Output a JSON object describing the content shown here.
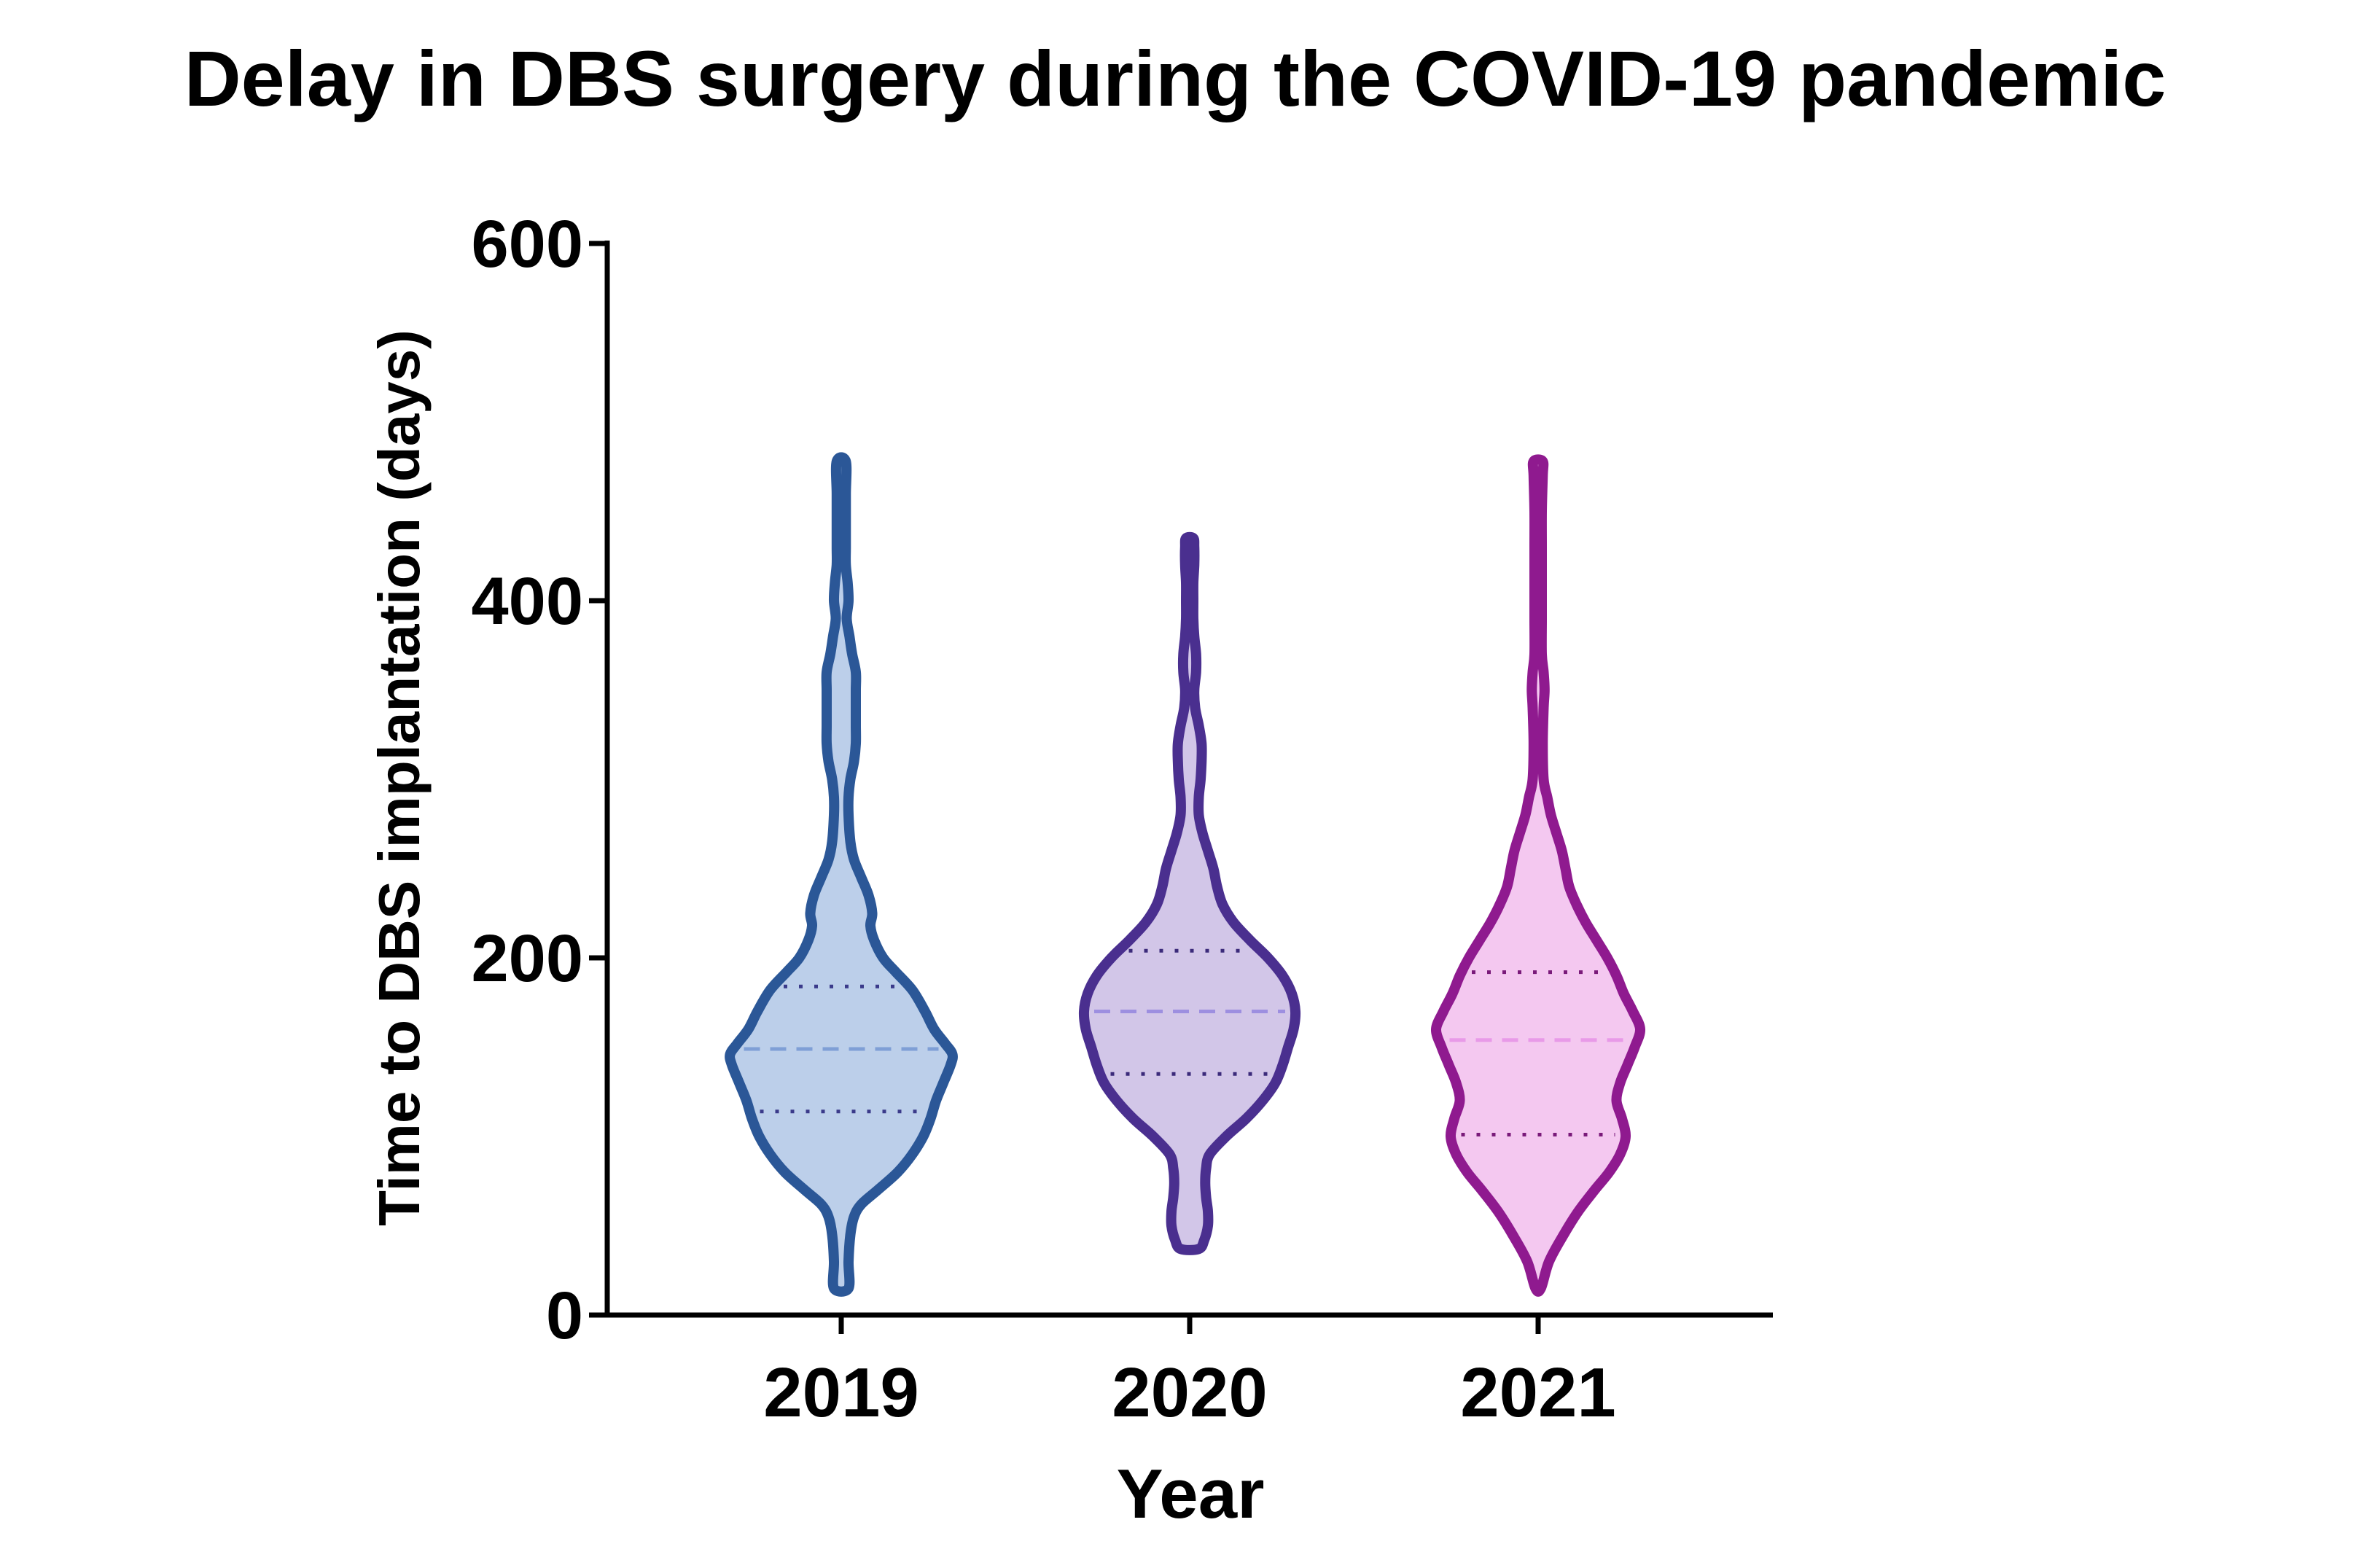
{
  "chart_data": {
    "type": "violin",
    "title": "Delay in DBS surgery during the COVID-19 pandemic",
    "xlabel": "Year",
    "ylabel": "Time to DBS implantation (days)",
    "ylim": [
      0,
      600
    ],
    "yticks": [
      0,
      200,
      400,
      600
    ],
    "ytick_labels": [
      "0",
      "200",
      "400",
      "600"
    ],
    "categories": [
      "2019",
      "2020",
      "2021"
    ],
    "grid": false,
    "legend": "none",
    "violins": [
      {
        "category": "2019",
        "min": 15,
        "max": 478,
        "median": 149,
        "q1": 114,
        "q3": 184,
        "edge_color": "#2b5797",
        "fill_color": "#bccfea",
        "median_color": "#7f9fd6",
        "quartile_color": "#3a3a8a",
        "profile": [
          [
            15,
            0.08
          ],
          [
            30,
            0.08
          ],
          [
            45,
            0.1
          ],
          [
            55,
            0.14
          ],
          [
            62,
            0.22
          ],
          [
            70,
            0.4
          ],
          [
            80,
            0.62
          ],
          [
            90,
            0.78
          ],
          [
            100,
            0.9
          ],
          [
            110,
            0.98
          ],
          [
            120,
            1.04
          ],
          [
            130,
            1.12
          ],
          [
            140,
            1.2
          ],
          [
            146,
            1.22
          ],
          [
            152,
            1.14
          ],
          [
            160,
            1.02
          ],
          [
            170,
            0.92
          ],
          [
            182,
            0.78
          ],
          [
            192,
            0.6
          ],
          [
            200,
            0.46
          ],
          [
            210,
            0.36
          ],
          [
            218,
            0.32
          ],
          [
            225,
            0.34
          ],
          [
            235,
            0.3
          ],
          [
            245,
            0.22
          ],
          [
            255,
            0.14
          ],
          [
            265,
            0.1
          ],
          [
            280,
            0.08
          ],
          [
            290,
            0.08
          ],
          [
            300,
            0.1
          ],
          [
            310,
            0.14
          ],
          [
            320,
            0.16
          ],
          [
            330,
            0.16
          ],
          [
            340,
            0.16
          ],
          [
            350,
            0.16
          ],
          [
            360,
            0.16
          ],
          [
            370,
            0.12
          ],
          [
            380,
            0.09
          ],
          [
            390,
            0.06
          ],
          [
            400,
            0.08
          ],
          [
            410,
            0.07
          ],
          [
            420,
            0.05
          ],
          [
            430,
            0.05
          ],
          [
            445,
            0.05
          ],
          [
            460,
            0.05
          ],
          [
            478,
            0.05
          ]
        ]
      },
      {
        "category": "2020",
        "min": 37,
        "max": 435,
        "median": 170,
        "q1": 135,
        "q3": 204,
        "edge_color": "#4a2f8f",
        "fill_color": "#d2c6e8",
        "median_color": "#9d8fe0",
        "quartile_color": "#3b2a7a",
        "profile": [
          [
            37,
            0.1
          ],
          [
            42,
            0.16
          ],
          [
            50,
            0.2
          ],
          [
            58,
            0.2
          ],
          [
            66,
            0.18
          ],
          [
            74,
            0.17
          ],
          [
            82,
            0.18
          ],
          [
            90,
            0.22
          ],
          [
            100,
            0.4
          ],
          [
            110,
            0.62
          ],
          [
            120,
            0.8
          ],
          [
            130,
            0.94
          ],
          [
            140,
            1.02
          ],
          [
            150,
            1.08
          ],
          [
            160,
            1.14
          ],
          [
            170,
            1.16
          ],
          [
            180,
            1.12
          ],
          [
            190,
            1.02
          ],
          [
            200,
            0.86
          ],
          [
            210,
            0.66
          ],
          [
            220,
            0.48
          ],
          [
            230,
            0.36
          ],
          [
            240,
            0.3
          ],
          [
            250,
            0.26
          ],
          [
            260,
            0.2
          ],
          [
            270,
            0.14
          ],
          [
            280,
            0.1
          ],
          [
            290,
            0.1
          ],
          [
            300,
            0.12
          ],
          [
            310,
            0.13
          ],
          [
            320,
            0.13
          ],
          [
            330,
            0.1
          ],
          [
            340,
            0.06
          ],
          [
            350,
            0.05
          ],
          [
            360,
            0.07
          ],
          [
            370,
            0.07
          ],
          [
            380,
            0.05
          ],
          [
            390,
            0.04
          ],
          [
            400,
            0.04
          ],
          [
            410,
            0.04
          ],
          [
            420,
            0.05
          ],
          [
            430,
            0.05
          ],
          [
            435,
            0.04
          ]
        ]
      },
      {
        "category": "2021",
        "min": 15,
        "max": 478,
        "median": 154,
        "q1": 101,
        "q3": 192,
        "edge_color": "#8f1a8f",
        "fill_color": "#f4c8f0",
        "median_color": "#e89ae8",
        "quartile_color": "#7a1a7a",
        "profile": [
          [
            15,
            0.03
          ],
          [
            30,
            0.12
          ],
          [
            45,
            0.28
          ],
          [
            58,
            0.44
          ],
          [
            70,
            0.62
          ],
          [
            80,
            0.78
          ],
          [
            90,
            0.9
          ],
          [
            100,
            0.96
          ],
          [
            110,
            0.92
          ],
          [
            120,
            0.86
          ],
          [
            130,
            0.9
          ],
          [
            140,
            0.98
          ],
          [
            150,
            1.06
          ],
          [
            160,
            1.12
          ],
          [
            170,
            1.04
          ],
          [
            180,
            0.94
          ],
          [
            190,
            0.86
          ],
          [
            200,
            0.76
          ],
          [
            210,
            0.64
          ],
          [
            220,
            0.52
          ],
          [
            230,
            0.42
          ],
          [
            240,
            0.34
          ],
          [
            250,
            0.3
          ],
          [
            260,
            0.26
          ],
          [
            270,
            0.2
          ],
          [
            280,
            0.14
          ],
          [
            290,
            0.1
          ],
          [
            300,
            0.06
          ],
          [
            320,
            0.05
          ],
          [
            340,
            0.06
          ],
          [
            350,
            0.07
          ],
          [
            360,
            0.06
          ],
          [
            370,
            0.04
          ],
          [
            390,
            0.04
          ],
          [
            410,
            0.04
          ],
          [
            430,
            0.04
          ],
          [
            450,
            0.04
          ],
          [
            470,
            0.05
          ],
          [
            478,
            0.05
          ]
        ]
      }
    ]
  }
}
